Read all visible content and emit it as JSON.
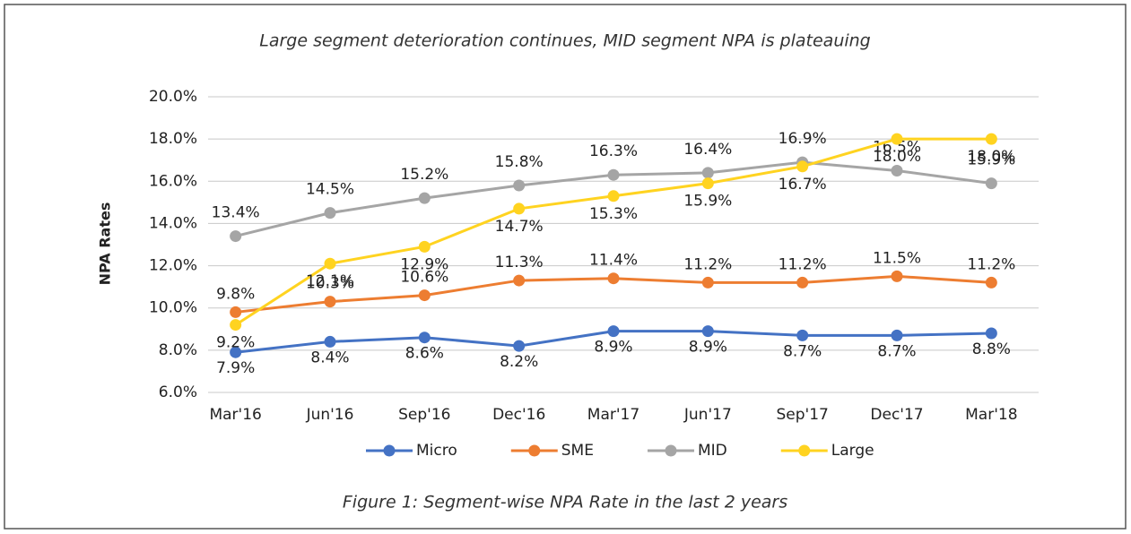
{
  "chart_data": {
    "type": "line",
    "title": "Large segment deterioration continues, MID segment NPA is plateauing",
    "caption": "Figure 1: Segment-wise NPA Rate in the last 2 years",
    "y_label": "NPA Rates",
    "categories": [
      "Mar'16",
      "Jun'16",
      "Sep'16",
      "Dec'16",
      "Mar'17",
      "Jun'17",
      "Sep'17",
      "Dec'17",
      "Mar'18"
    ],
    "ylim": [
      6,
      20
    ],
    "yticks": [
      {
        "value": 6,
        "label": "6.0%"
      },
      {
        "value": 8,
        "label": "8.0%"
      },
      {
        "value": 10,
        "label": "10.0%"
      },
      {
        "value": 12,
        "label": "12.0%"
      },
      {
        "value": 14,
        "label": "14.0%"
      },
      {
        "value": 16,
        "label": "16.0%"
      },
      {
        "value": 18,
        "label": "18.0%"
      },
      {
        "value": 20,
        "label": "20.0%"
      }
    ],
    "grid": true,
    "legend": "bottom",
    "series": [
      {
        "name": "Micro",
        "color": "#4472c4",
        "values": [
          7.9,
          8.4,
          8.6,
          8.2,
          8.9,
          8.9,
          8.7,
          8.7,
          8.8
        ],
        "value_labels": [
          "7.9%",
          "8.4%",
          "8.6%",
          "8.2%",
          "8.9%",
          "8.9%",
          "8.7%",
          "8.7%",
          "8.8%"
        ]
      },
      {
        "name": "SME",
        "color": "#ed7d31",
        "values": [
          9.8,
          10.3,
          10.6,
          11.3,
          11.4,
          11.2,
          11.2,
          11.5,
          11.2
        ],
        "value_labels": [
          "9.8%",
          "10.3%",
          "10.6%",
          "11.3%",
          "11.4%",
          "11.2%",
          "11.2%",
          "11.5%",
          "11.2%"
        ]
      },
      {
        "name": "MID",
        "color": "#a5a5a5",
        "values": [
          13.4,
          14.5,
          15.2,
          15.8,
          16.3,
          16.4,
          16.9,
          16.5,
          15.9
        ],
        "value_labels": [
          "13.4%",
          "14.5%",
          "15.2%",
          "15.8%",
          "16.3%",
          "16.4%",
          "16.9%",
          "16.5%",
          "15.9%"
        ]
      },
      {
        "name": "Large",
        "color": "#ffd320",
        "values": [
          9.2,
          12.1,
          12.9,
          14.7,
          15.3,
          15.9,
          16.7,
          18.0,
          18.0
        ],
        "value_labels": [
          "9.2%",
          "12.1%",
          "12.9%",
          "14.7%",
          "15.3%",
          "15.9%",
          "16.7%",
          "18.0%",
          "18.0%"
        ]
      }
    ]
  }
}
